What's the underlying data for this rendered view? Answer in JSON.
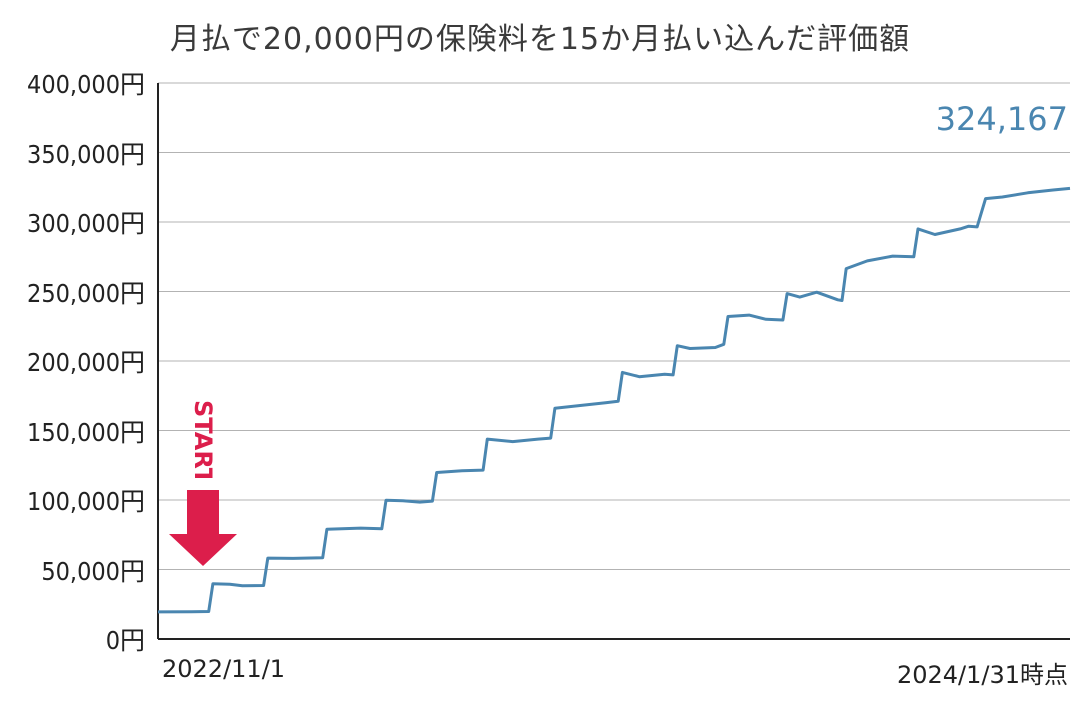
{
  "chart_data": {
    "type": "line",
    "title": "月払で20,000円の保険料を15か月払い込んだ評価額",
    "x_start_label": "2022/11/1",
    "x_end_label": "2024/1/31時点",
    "ylim": [
      0,
      400000
    ],
    "yticks": [
      "0円",
      "50,000円",
      "100,000円",
      "150,000円",
      "200,000円",
      "250,000円",
      "300,000円",
      "350,000円",
      "400,000円"
    ],
    "end_value_label": "324,167",
    "start_marker_label": "START",
    "colors": {
      "line": "#4a86b0",
      "start": "#dc1e4b"
    },
    "series": [
      {
        "values": [
          [
            0,
            19500
          ],
          [
            4,
            19600
          ],
          [
            6,
            19800
          ],
          [
            6.5,
            39800
          ],
          [
            8.5,
            39400
          ],
          [
            10,
            38300
          ],
          [
            12.5,
            38500
          ],
          [
            13,
            58200
          ],
          [
            16,
            58000
          ],
          [
            19.5,
            58500
          ],
          [
            20,
            79000
          ],
          [
            24,
            79800
          ],
          [
            26.5,
            79300
          ],
          [
            27,
            99800
          ],
          [
            29,
            99500
          ],
          [
            31,
            98500
          ],
          [
            32.5,
            99200
          ],
          [
            33,
            119800
          ],
          [
            36,
            121000
          ],
          [
            38.5,
            121500
          ],
          [
            39,
            143800
          ],
          [
            42,
            142000
          ],
          [
            45,
            143800
          ],
          [
            46.5,
            144500
          ],
          [
            47,
            166000
          ],
          [
            50,
            168000
          ],
          [
            53,
            170000
          ],
          [
            54.5,
            171000
          ],
          [
            55,
            191800
          ],
          [
            57,
            188700
          ],
          [
            60,
            190500
          ],
          [
            61,
            190000
          ],
          [
            61.5,
            211000
          ],
          [
            63,
            209000
          ],
          [
            66,
            209700
          ],
          [
            67,
            212000
          ],
          [
            67.5,
            232000
          ],
          [
            70,
            233000
          ],
          [
            72,
            230000
          ],
          [
            74,
            229500
          ],
          [
            74.5,
            248500
          ],
          [
            76,
            246000
          ],
          [
            78,
            249500
          ],
          [
            80.5,
            244000
          ],
          [
            81,
            243500
          ],
          [
            81.5,
            266500
          ],
          [
            84,
            272000
          ],
          [
            87,
            275500
          ],
          [
            89.5,
            275000
          ],
          [
            90,
            295000
          ],
          [
            92,
            291000
          ],
          [
            95,
            295000
          ],
          [
            96,
            297000
          ],
          [
            97,
            296500
          ],
          [
            98,
            316800
          ],
          [
            100,
            318000
          ],
          [
            103,
            321000
          ],
          [
            106,
            323000
          ],
          [
            108,
            324167
          ]
        ]
      }
    ]
  }
}
